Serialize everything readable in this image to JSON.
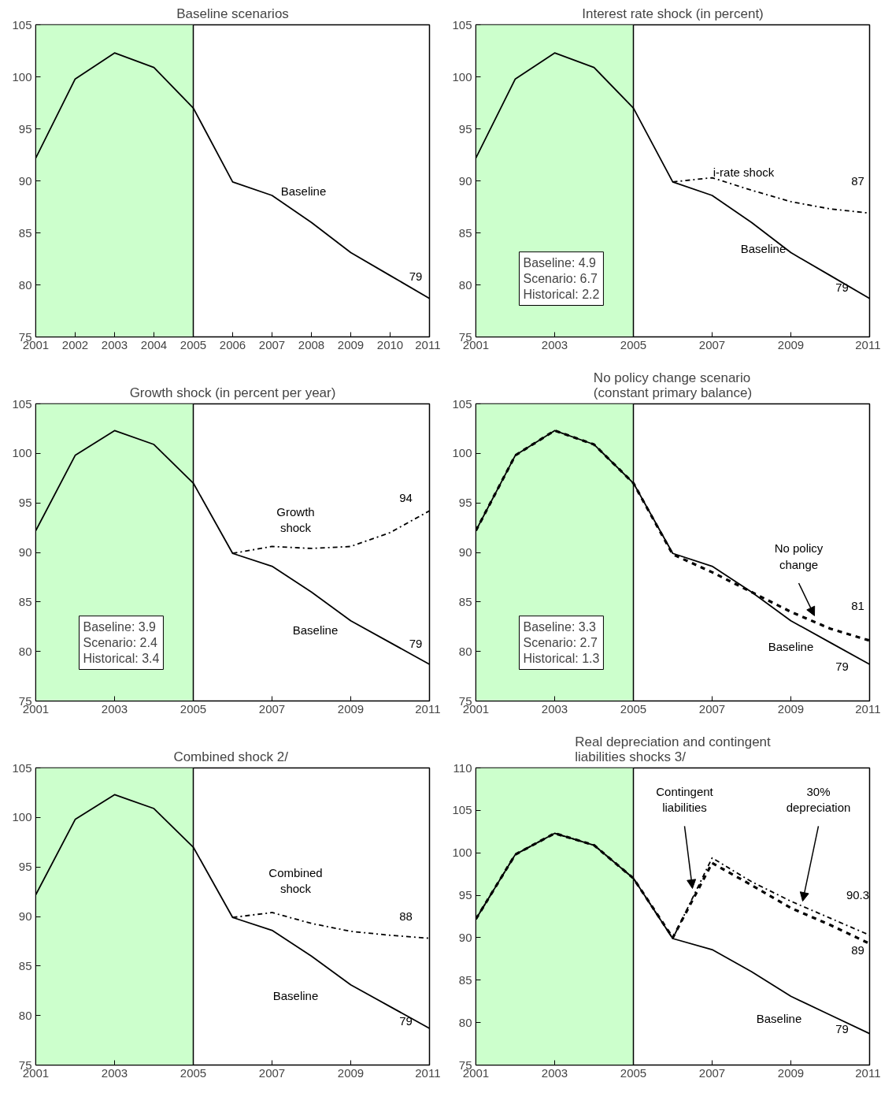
{
  "chart_data": [
    {
      "type": "line",
      "title": "Baseline scenarios",
      "x": [
        2001,
        2002,
        2003,
        2004,
        2005,
        2006,
        2007,
        2008,
        2009,
        2010,
        2011
      ],
      "xlim": [
        2001,
        2011
      ],
      "xticks": [
        2001,
        2002,
        2003,
        2004,
        2005,
        2006,
        2007,
        2008,
        2009,
        2010,
        2011
      ],
      "ylim": [
        75,
        105
      ],
      "yticks": [
        75,
        80,
        85,
        90,
        95,
        100,
        105
      ],
      "grid": false,
      "series": [
        {
          "name": "Baseline",
          "color": "#000000",
          "line_style": "solid",
          "values": [
            92.2,
            99.8,
            102.3,
            100.9,
            97.0,
            89.9,
            88.6,
            86.0,
            83.1,
            80.9,
            78.7
          ],
          "value_labels": [
            null,
            null,
            null,
            null,
            null,
            null,
            null,
            null,
            null,
            null,
            "79"
          ]
        }
      ],
      "bands": [
        {
          "axis": "x",
          "from": 2001,
          "to": 2005,
          "color": "#ccffcc"
        }
      ],
      "ref_lines": [
        {
          "axis": "x",
          "value": 2005,
          "color": "#000000"
        }
      ]
    },
    {
      "type": "line",
      "title": "Interest rate shock (in percent)",
      "x": [
        2001,
        2002,
        2003,
        2004,
        2005,
        2006,
        2007,
        2008,
        2009,
        2010,
        2011
      ],
      "xlim": [
        2001,
        2011
      ],
      "xticks": [
        2001,
        2003,
        2005,
        2007,
        2009,
        2011
      ],
      "ylim": [
        75,
        105
      ],
      "yticks": [
        75,
        80,
        85,
        90,
        95,
        100,
        105
      ],
      "grid": false,
      "series": [
        {
          "name": "Baseline",
          "color": "#000000",
          "line_style": "solid",
          "values": [
            92.2,
            99.8,
            102.3,
            100.9,
            97.0,
            89.9,
            88.6,
            86.0,
            83.1,
            80.9,
            78.7
          ],
          "value_labels": [
            null,
            null,
            null,
            null,
            null,
            null,
            null,
            null,
            null,
            null,
            "79"
          ]
        },
        {
          "name": "i-rate shock",
          "color": "#000000",
          "line_style": "dashdot",
          "x": [
            2006,
            2007,
            2008,
            2009,
            2010,
            2011
          ],
          "values": [
            89.9,
            90.3,
            89.1,
            88.0,
            87.3,
            86.9
          ],
          "value_labels": [
            null,
            null,
            null,
            null,
            null,
            "87"
          ]
        }
      ],
      "bands": [
        {
          "axis": "x",
          "from": 2001,
          "to": 2005,
          "color": "#ccffcc"
        }
      ],
      "ref_lines": [
        {
          "axis": "x",
          "value": 2005,
          "color": "#000000"
        }
      ],
      "annotations": [
        "Baseline: 4.9",
        "Scenario: 6.7",
        "Historical: 2.2"
      ]
    },
    {
      "type": "line",
      "title": "Growth shock (in percent per year)",
      "x": [
        2001,
        2002,
        2003,
        2004,
        2005,
        2006,
        2007,
        2008,
        2009,
        2010,
        2011
      ],
      "xlim": [
        2001,
        2011
      ],
      "xticks": [
        2001,
        2003,
        2005,
        2007,
        2009,
        2011
      ],
      "ylim": [
        75,
        105
      ],
      "yticks": [
        75,
        80,
        85,
        90,
        95,
        100,
        105
      ],
      "grid": false,
      "series": [
        {
          "name": "Baseline",
          "color": "#000000",
          "line_style": "solid",
          "values": [
            92.2,
            99.8,
            102.3,
            100.9,
            97.0,
            89.9,
            88.6,
            86.0,
            83.1,
            80.9,
            78.7
          ],
          "value_labels": [
            null,
            null,
            null,
            null,
            null,
            null,
            null,
            null,
            null,
            null,
            "79"
          ]
        },
        {
          "name": "Growth\nshock",
          "color": "#000000",
          "line_style": "dashdot",
          "x": [
            2006,
            2007,
            2008,
            2009,
            2010,
            2011
          ],
          "values": [
            89.9,
            90.6,
            90.4,
            90.6,
            92.0,
            94.2
          ],
          "value_labels": [
            null,
            null,
            null,
            null,
            null,
            "94"
          ]
        }
      ],
      "bands": [
        {
          "axis": "x",
          "from": 2001,
          "to": 2005,
          "color": "#ccffcc"
        }
      ],
      "ref_lines": [
        {
          "axis": "x",
          "value": 2005,
          "color": "#000000"
        }
      ],
      "annotations": [
        "Baseline: 3.9",
        "Scenario: 2.4",
        "Historical: 3.4"
      ]
    },
    {
      "type": "line",
      "title": "No policy change scenario\n(constant primary balance)",
      "x": [
        2001,
        2002,
        2003,
        2004,
        2005,
        2006,
        2007,
        2008,
        2009,
        2010,
        2011
      ],
      "xlim": [
        2001,
        2011
      ],
      "xticks": [
        2001,
        2003,
        2005,
        2007,
        2009,
        2011
      ],
      "ylim": [
        75,
        105
      ],
      "yticks": [
        75,
        80,
        85,
        90,
        95,
        100,
        105
      ],
      "grid": false,
      "series": [
        {
          "name": "Baseline",
          "color": "#000000",
          "line_style": "solid",
          "values": [
            92.2,
            99.8,
            102.3,
            100.9,
            97.0,
            89.9,
            88.6,
            86.0,
            83.1,
            80.9,
            78.7
          ],
          "value_labels": [
            null,
            null,
            null,
            null,
            null,
            null,
            null,
            null,
            null,
            null,
            "79"
          ]
        },
        {
          "name": "No policy\nchange",
          "color": "#000000",
          "line_style": "dashed",
          "values": [
            92.2,
            99.8,
            102.3,
            100.9,
            97.0,
            89.8,
            88.0,
            86.0,
            84.0,
            82.3,
            81.1
          ],
          "value_labels": [
            null,
            null,
            null,
            null,
            null,
            null,
            null,
            null,
            null,
            null,
            "81"
          ]
        }
      ],
      "bands": [
        {
          "axis": "x",
          "from": 2001,
          "to": 2005,
          "color": "#ccffcc"
        }
      ],
      "ref_lines": [
        {
          "axis": "x",
          "value": 2005,
          "color": "#000000"
        }
      ],
      "annotations": [
        "Baseline: 3.3",
        "Scenario: 2.7",
        "Historical: 1.3"
      ]
    },
    {
      "type": "line",
      "title": "Combined shock  2/",
      "x": [
        2001,
        2002,
        2003,
        2004,
        2005,
        2006,
        2007,
        2008,
        2009,
        2010,
        2011
      ],
      "xlim": [
        2001,
        2011
      ],
      "xticks": [
        2001,
        2003,
        2005,
        2007,
        2009,
        2011
      ],
      "ylim": [
        75,
        105
      ],
      "yticks": [
        75,
        80,
        85,
        90,
        95,
        100,
        105
      ],
      "grid": false,
      "series": [
        {
          "name": "Baseline",
          "color": "#000000",
          "line_style": "solid",
          "values": [
            92.2,
            99.8,
            102.3,
            100.9,
            97.0,
            89.9,
            88.6,
            86.0,
            83.1,
            80.9,
            78.7
          ],
          "value_labels": [
            null,
            null,
            null,
            null,
            null,
            null,
            null,
            null,
            null,
            null,
            "79"
          ]
        },
        {
          "name": "Combined\nshock",
          "color": "#000000",
          "line_style": "dashdot",
          "x": [
            2006,
            2007,
            2008,
            2009,
            2010,
            2011
          ],
          "values": [
            89.9,
            90.4,
            89.3,
            88.5,
            88.1,
            87.8
          ],
          "value_labels": [
            null,
            null,
            null,
            null,
            null,
            "88"
          ]
        }
      ],
      "bands": [
        {
          "axis": "x",
          "from": 2001,
          "to": 2005,
          "color": "#ccffcc"
        }
      ],
      "ref_lines": [
        {
          "axis": "x",
          "value": 2005,
          "color": "#000000"
        }
      ]
    },
    {
      "type": "line",
      "title": "Real depreciation and contingent\nliabilities shocks 3/",
      "x": [
        2001,
        2002,
        2003,
        2004,
        2005,
        2006,
        2007,
        2008,
        2009,
        2010,
        2011
      ],
      "xlim": [
        2001,
        2011
      ],
      "xticks": [
        2001,
        2003,
        2005,
        2007,
        2009,
        2011
      ],
      "ylim": [
        75,
        110
      ],
      "yticks": [
        75,
        80,
        85,
        90,
        95,
        100,
        105,
        110
      ],
      "grid": false,
      "series": [
        {
          "name": "Baseline",
          "color": "#000000",
          "line_style": "solid",
          "values": [
            92.2,
            99.8,
            102.3,
            100.9,
            97.0,
            89.9,
            88.6,
            86.0,
            83.1,
            80.9,
            78.7
          ],
          "value_labels": [
            null,
            null,
            null,
            null,
            null,
            null,
            null,
            null,
            null,
            null,
            "79"
          ]
        },
        {
          "name": "30%\ndepreciation",
          "color": "#000000",
          "line_style": "dashdot",
          "values": [
            92.2,
            99.8,
            102.3,
            100.9,
            97.0,
            89.9,
            99.4,
            96.6,
            94.3,
            92.3,
            90.3
          ],
          "value_labels": [
            null,
            null,
            null,
            null,
            null,
            null,
            null,
            null,
            null,
            null,
            "90.3"
          ]
        },
        {
          "name": "Contingent\nliabilities",
          "color": "#000000",
          "line_style": "dashed",
          "values": [
            92.2,
            99.8,
            102.3,
            100.9,
            97.0,
            90.0,
            98.8,
            96.2,
            93.5,
            91.5,
            89.3
          ],
          "value_labels": [
            null,
            null,
            null,
            null,
            null,
            null,
            null,
            null,
            null,
            null,
            "89"
          ]
        }
      ],
      "bands": [
        {
          "axis": "x",
          "from": 2001,
          "to": 2005,
          "color": "#ccffcc"
        }
      ],
      "ref_lines": [
        {
          "axis": "x",
          "value": 2005,
          "color": "#000000"
        }
      ]
    }
  ]
}
